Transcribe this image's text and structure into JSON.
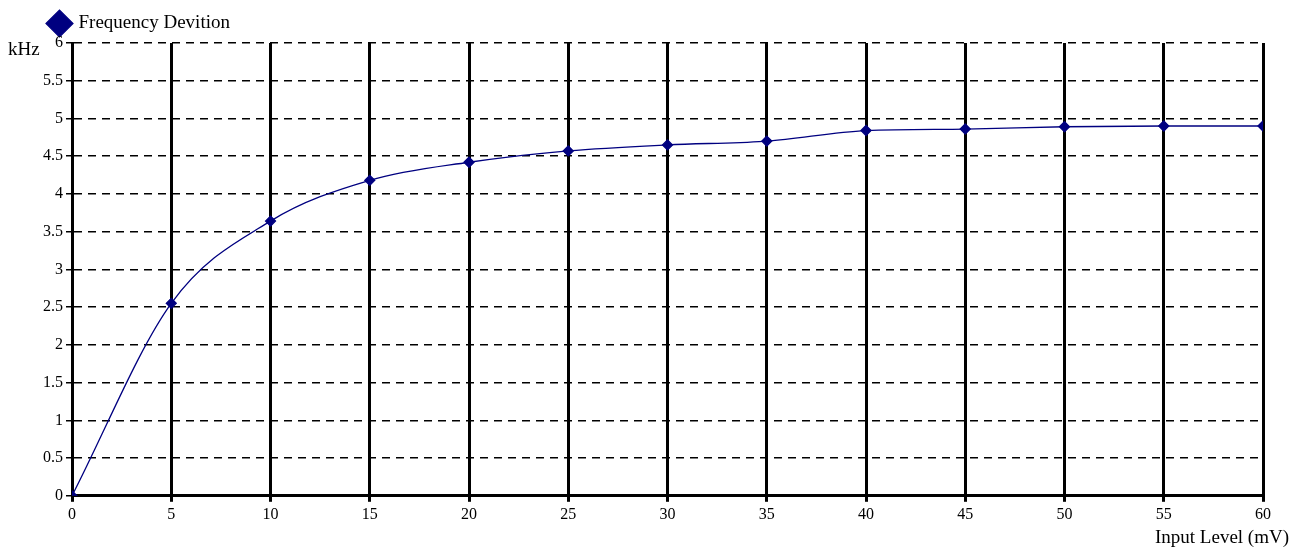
{
  "chart_data": {
    "type": "line",
    "xlabel": "Input Level (mV)",
    "ylabel": "kHz",
    "x": [
      0,
      5,
      10,
      15,
      20,
      25,
      30,
      35,
      40,
      45,
      50,
      55,
      60
    ],
    "series": [
      {
        "name": "Frequency Devition",
        "color": "#000080",
        "values": [
          0,
          2.55,
          3.64,
          4.18,
          4.42,
          4.57,
          4.65,
          4.7,
          4.84,
          4.86,
          4.89,
          4.9,
          4.9
        ]
      }
    ],
    "xlim": [
      0,
      60
    ],
    "xticks": [
      0,
      5,
      10,
      15,
      20,
      25,
      30,
      35,
      40,
      45,
      50,
      55,
      60
    ],
    "ylim": [
      0,
      6
    ],
    "yticks": [
      0,
      0.5,
      1,
      1.5,
      2,
      2.5,
      3,
      3.5,
      4,
      4.5,
      5,
      5.5,
      6
    ],
    "grid": true,
    "legend": "top left",
    "marker": "diamond",
    "line_style": "solid"
  }
}
